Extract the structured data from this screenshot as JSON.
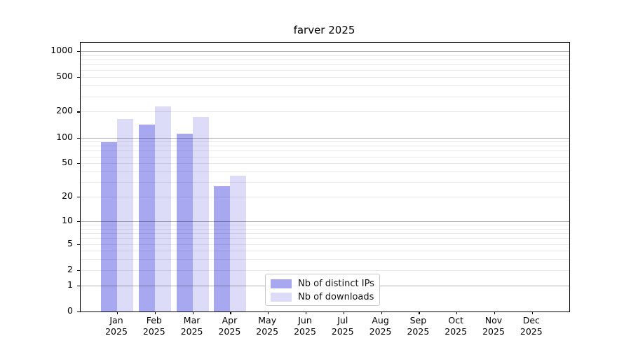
{
  "title": "farver 2025",
  "colors": {
    "distinct_ips": "#a8a8f0",
    "downloads": "#dcdcf8",
    "axis": "#000000",
    "grid_major": "#b3b3b3",
    "grid_minor": "#ececec"
  },
  "chart_data": {
    "type": "bar",
    "title": "farver 2025",
    "categories": [
      "Jan",
      "Feb",
      "Mar",
      "Apr",
      "May",
      "Jun",
      "Jul",
      "Aug",
      "Sep",
      "Oct",
      "Nov",
      "Dec"
    ],
    "x_sublabel": "2025",
    "series": [
      {
        "name": "Nb of distinct IPs",
        "color": "#a8a8f0",
        "values": [
          89,
          141,
          111,
          27,
          0,
          0,
          0,
          0,
          0,
          0,
          0,
          0
        ]
      },
      {
        "name": "Nb of downloads",
        "color": "#dcdcf8",
        "values": [
          163,
          230,
          173,
          36,
          0,
          0,
          0,
          0,
          0,
          0,
          0,
          0
        ]
      }
    ],
    "y_scale": "log10(1+x)",
    "y_ticks": [
      0,
      1,
      2,
      5,
      10,
      20,
      50,
      100,
      200,
      500,
      1000
    ],
    "ylim": [
      0,
      1250
    ],
    "grid": true,
    "legend_position": "lower center"
  }
}
